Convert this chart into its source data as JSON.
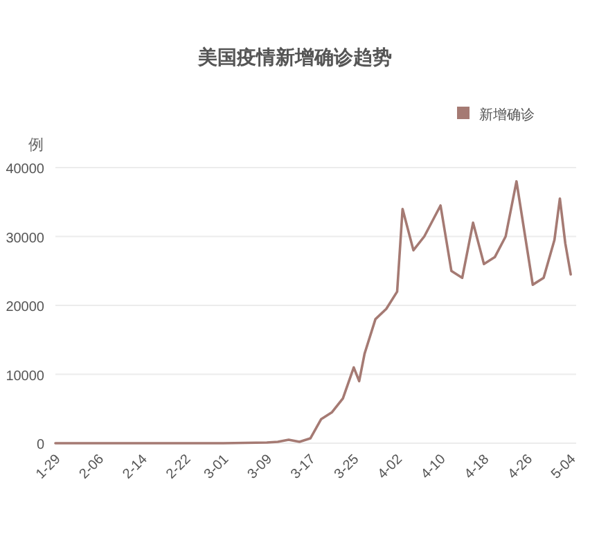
{
  "chart_data": {
    "type": "line",
    "title": "美国疫情新增确诊趋势",
    "ylabel": "例",
    "x": [
      "--01-29",
      "--02-06",
      "--02-14",
      "--02-22",
      "--03-01",
      "--03-09",
      "--03-11",
      "--03-13",
      "--03-15",
      "--03-17",
      "--03-19",
      "--03-21",
      "--03-23",
      "--03-25",
      "--03-26",
      "--03-27",
      "--03-29",
      "--03-31",
      "--04-02",
      "--04-03",
      "--04-05",
      "--04-07",
      "--04-10",
      "--04-12",
      "--04-14",
      "--04-16",
      "--04-18",
      "--04-20",
      "--04-22",
      "--04-24",
      "--04-26",
      "--04-27",
      "--04-29",
      "--05-01",
      "--05-02",
      "--05-03",
      "--05-04"
    ],
    "series": [
      {
        "name": "新增确诊",
        "color": "#a57a73",
        "values": [
          0,
          0,
          0,
          0,
          0,
          100,
          200,
          500,
          200,
          700,
          3500,
          4500,
          6500,
          11000,
          9000,
          13000,
          18000,
          19500,
          22000,
          34000,
          28000,
          30000,
          34500,
          25000,
          24000,
          32000,
          26000,
          27000,
          30000,
          38000,
          28000,
          23000,
          24000,
          29500,
          35500,
          29000,
          24500
        ]
      }
    ],
    "xlim": [
      "--01-29",
      "--05-05"
    ],
    "xticks": [
      {
        "value": "--01-29",
        "label": "1-29"
      },
      {
        "value": "--02-06",
        "label": "2-06"
      },
      {
        "value": "--02-14",
        "label": "2-14"
      },
      {
        "value": "--02-22",
        "label": "2-22"
      },
      {
        "value": "--03-01",
        "label": "3-01"
      },
      {
        "value": "--03-09",
        "label": "3-09"
      },
      {
        "value": "--03-17",
        "label": "3-17"
      },
      {
        "value": "--03-25",
        "label": "3-25"
      },
      {
        "value": "--04-02",
        "label": "4-02"
      },
      {
        "value": "--04-10",
        "label": "4-10"
      },
      {
        "value": "--04-18",
        "label": "4-18"
      },
      {
        "value": "--04-26",
        "label": "4-26"
      },
      {
        "value": "--05-04",
        "label": "5-04"
      }
    ],
    "ylim": [
      0,
      40000
    ],
    "yticks": [
      0,
      10000,
      20000,
      30000,
      40000
    ],
    "grid": "y",
    "legend": "top right",
    "marker": "none",
    "line_style": "solid"
  }
}
